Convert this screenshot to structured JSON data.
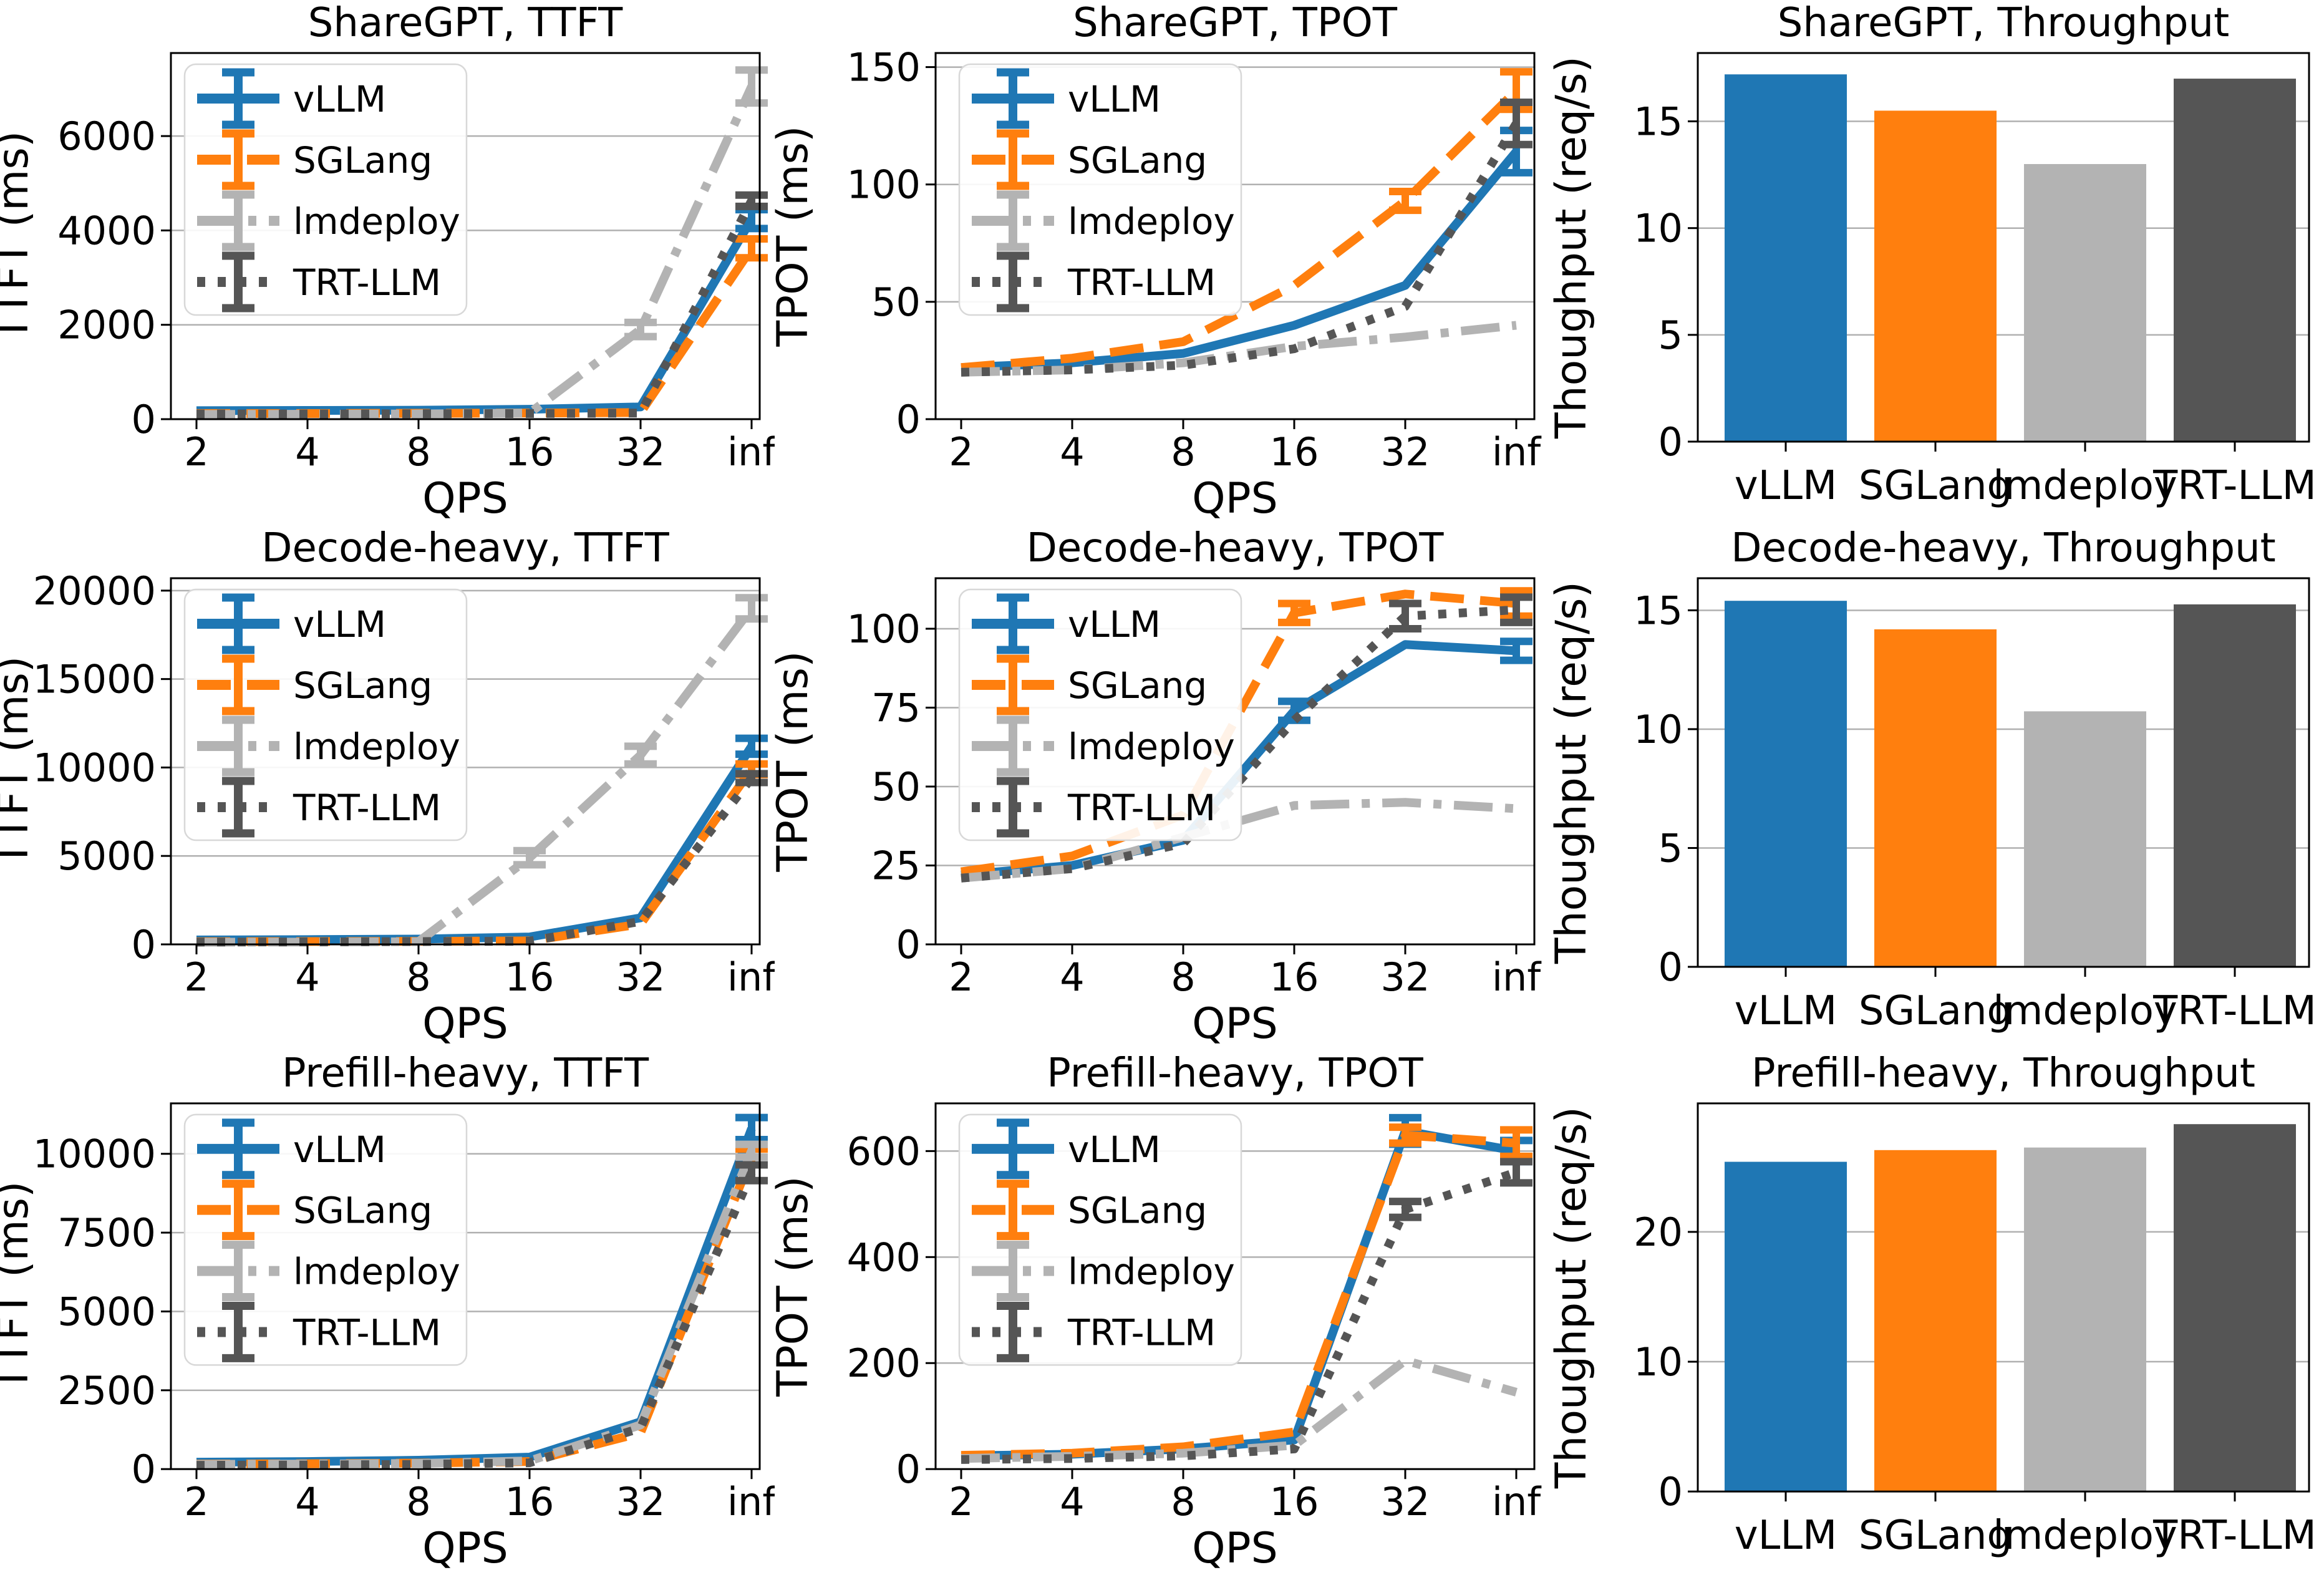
{
  "page": {
    "background": "#ffffff"
  },
  "palette": {
    "vLLM": "#1f77b4",
    "SGLang": "#ff7f0e",
    "lmdeploy": "#b3b3b3",
    "TRT-LLM": "#555555"
  },
  "style": {
    "grid_color": "#b0b0b0",
    "axis_color": "#000000",
    "legend_border": "#d8d8d8",
    "background": "#ffffff"
  },
  "series_order": [
    "vLLM",
    "SGLang",
    "lmdeploy",
    "TRT-LLM"
  ],
  "line_styles": {
    "vLLM": "solid",
    "SGLang": "dashed",
    "lmdeploy": "dashdot",
    "TRT-LLM": "dotted"
  },
  "x_axis_label": "QPS",
  "x_ticks": [
    "2",
    "4",
    "8",
    "16",
    "32",
    "inf"
  ],
  "chart_data": [
    {
      "id": "sharegpt-ttft",
      "type": "line",
      "title": "ShareGPT, TTFT",
      "xlabel": "QPS",
      "ylabel": "TTFT (ms)",
      "x_ticklabels": [
        "2",
        "4",
        "8",
        "16",
        "32",
        "inf"
      ],
      "yticks": [
        0,
        2000,
        4000,
        6000
      ],
      "ymax": 7760,
      "legend": true,
      "grid": true,
      "series": [
        {
          "name": "vLLM",
          "values": [
            180,
            185,
            190,
            210,
            260,
            4240
          ],
          "err": [
            0,
            0,
            0,
            0,
            0,
            200
          ]
        },
        {
          "name": "SGLang",
          "values": [
            120,
            120,
            125,
            130,
            140,
            3620
          ],
          "err": [
            0,
            0,
            0,
            0,
            0,
            200
          ]
        },
        {
          "name": "lmdeploy",
          "values": [
            100,
            105,
            110,
            130,
            1900,
            7050
          ],
          "err": [
            0,
            0,
            0,
            0,
            150,
            350
          ]
        },
        {
          "name": "TRT-LLM",
          "values": [
            110,
            110,
            115,
            120,
            130,
            4630
          ],
          "err": [
            0,
            0,
            0,
            0,
            0,
            120
          ]
        }
      ]
    },
    {
      "id": "sharegpt-tpot",
      "type": "line",
      "title": "ShareGPT, TPOT",
      "xlabel": "QPS",
      "ylabel": "TPOT (ms)",
      "x_ticklabels": [
        "2",
        "4",
        "8",
        "16",
        "32",
        "inf"
      ],
      "yticks": [
        0,
        50,
        100,
        150
      ],
      "ymax": 156,
      "legend": true,
      "grid": true,
      "series": [
        {
          "name": "vLLM",
          "values": [
            22,
            24,
            28,
            40,
            57,
            114
          ],
          "err": [
            0,
            0,
            0,
            0,
            0,
            9
          ]
        },
        {
          "name": "SGLang",
          "values": [
            22,
            26,
            33,
            57,
            93,
            140
          ],
          "err": [
            0,
            0,
            0,
            0,
            4,
            8
          ]
        },
        {
          "name": "lmdeploy",
          "values": [
            20,
            21,
            24,
            31,
            35,
            40
          ],
          "err": [
            0,
            0,
            0,
            0,
            0,
            0
          ]
        },
        {
          "name": "TRT-LLM",
          "values": [
            20,
            21,
            23,
            30,
            48,
            126
          ],
          "err": [
            0,
            0,
            0,
            0,
            0,
            9
          ]
        }
      ]
    },
    {
      "id": "sharegpt-throughput",
      "type": "bar",
      "title": "ShareGPT, Throughput",
      "ylabel": "Thoughput (req/s)",
      "categories": [
        "vLLM",
        "SGLang",
        "lmdeploy",
        "TRT-LLM"
      ],
      "values": [
        17.2,
        15.5,
        13.0,
        17.0
      ],
      "yticks": [
        0,
        5,
        10,
        15
      ],
      "ymax": 18.2,
      "grid": true
    },
    {
      "id": "decode-heavy-ttft",
      "type": "line",
      "title": "Decode-heavy, TTFT",
      "xlabel": "QPS",
      "ylabel": "TTFT (ms)",
      "x_ticklabels": [
        "2",
        "4",
        "8",
        "16",
        "32",
        "inf"
      ],
      "yticks": [
        0,
        5000,
        10000,
        15000,
        20000
      ],
      "ymax": 20700,
      "legend": true,
      "grid": true,
      "series": [
        {
          "name": "vLLM",
          "values": [
            250,
            270,
            300,
            420,
            1500,
            11200
          ],
          "err": [
            0,
            0,
            0,
            0,
            0,
            450
          ]
        },
        {
          "name": "SGLang",
          "values": [
            150,
            160,
            170,
            200,
            1150,
            9900
          ],
          "err": [
            0,
            0,
            0,
            0,
            0,
            300
          ]
        },
        {
          "name": "lmdeploy",
          "values": [
            120,
            130,
            150,
            4900,
            10700,
            19000
          ],
          "err": [
            0,
            0,
            0,
            400,
            500,
            600
          ]
        },
        {
          "name": "TRT-LLM",
          "values": [
            130,
            140,
            160,
            180,
            1300,
            9400
          ],
          "err": [
            0,
            0,
            0,
            0,
            0,
            250
          ]
        }
      ]
    },
    {
      "id": "decode-heavy-tpot",
      "type": "line",
      "title": "Decode-heavy, TPOT",
      "xlabel": "QPS",
      "ylabel": "TPOT (ms)",
      "x_ticklabels": [
        "2",
        "4",
        "8",
        "16",
        "32",
        "inf"
      ],
      "yticks": [
        0,
        25,
        50,
        75,
        100
      ],
      "ymax": 116,
      "legend": true,
      "grid": true,
      "series": [
        {
          "name": "vLLM",
          "values": [
            22,
            25,
            33,
            74,
            95,
            93
          ],
          "err": [
            0,
            0,
            0,
            3,
            0,
            3
          ]
        },
        {
          "name": "SGLang",
          "values": [
            23,
            28,
            41,
            105,
            111,
            108
          ],
          "err": [
            0,
            0,
            0,
            3,
            0,
            4
          ]
        },
        {
          "name": "lmdeploy",
          "values": [
            21,
            24,
            34,
            44,
            45,
            43
          ],
          "err": [
            0,
            0,
            0,
            0,
            0,
            0
          ]
        },
        {
          "name": "TRT-LLM",
          "values": [
            21,
            24,
            32,
            71,
            104,
            106
          ],
          "err": [
            0,
            0,
            0,
            0,
            4,
            4
          ]
        }
      ]
    },
    {
      "id": "decode-heavy-throughput",
      "type": "bar",
      "title": "Decode-heavy, Throughput",
      "ylabel": "Thoughput (req/s)",
      "categories": [
        "vLLM",
        "SGLang",
        "lmdeploy",
        "TRT-LLM"
      ],
      "values": [
        15.4,
        14.2,
        10.75,
        15.25
      ],
      "yticks": [
        0,
        5,
        10,
        15
      ],
      "ymax": 16.35,
      "grid": true
    },
    {
      "id": "prefill-heavy-ttft",
      "type": "line",
      "title": "Prefill-heavy, TTFT",
      "xlabel": "QPS",
      "ylabel": "TTFT (ms)",
      "x_ticklabels": [
        "2",
        "4",
        "8",
        "16",
        "32",
        "inf"
      ],
      "yticks": [
        0,
        2500,
        5000,
        7500,
        10000
      ],
      "ymax": 11600,
      "legend": true,
      "grid": true,
      "series": [
        {
          "name": "vLLM",
          "values": [
            220,
            240,
            280,
            380,
            1500,
            10800
          ],
          "err": [
            0,
            0,
            0,
            0,
            0,
            350
          ]
        },
        {
          "name": "SGLang",
          "values": [
            160,
            170,
            190,
            240,
            1150,
            9900
          ],
          "err": [
            0,
            0,
            0,
            0,
            0,
            250
          ]
        },
        {
          "name": "lmdeploy",
          "values": [
            150,
            160,
            180,
            260,
            1400,
            10100
          ],
          "err": [
            0,
            0,
            0,
            0,
            0,
            200
          ]
        },
        {
          "name": "TRT-LLM",
          "values": [
            120,
            130,
            150,
            200,
            1300,
            9400
          ],
          "err": [
            0,
            0,
            0,
            0,
            0,
            250
          ]
        }
      ]
    },
    {
      "id": "prefill-heavy-tpot",
      "type": "line",
      "title": "Prefill-heavy, TPOT",
      "xlabel": "QPS",
      "ylabel": "TPOT (ms)",
      "x_ticklabels": [
        "2",
        "4",
        "8",
        "16",
        "32",
        "inf"
      ],
      "yticks": [
        0,
        200,
        400,
        600
      ],
      "ymax": 690,
      "legend": true,
      "grid": true,
      "series": [
        {
          "name": "vLLM",
          "values": [
            25,
            28,
            38,
            55,
            638,
            600
          ],
          "err": [
            0,
            0,
            0,
            0,
            25,
            20
          ]
        },
        {
          "name": "SGLang",
          "values": [
            26,
            30,
            42,
            70,
            630,
            615
          ],
          "err": [
            0,
            0,
            0,
            0,
            15,
            25
          ]
        },
        {
          "name": "lmdeploy",
          "values": [
            20,
            24,
            30,
            45,
            205,
            145
          ],
          "err": [
            0,
            0,
            0,
            0,
            0,
            0
          ]
        },
        {
          "name": "TRT-LLM",
          "values": [
            18,
            20,
            25,
            38,
            490,
            560
          ],
          "err": [
            0,
            0,
            0,
            0,
            15,
            20
          ]
        }
      ]
    },
    {
      "id": "prefill-heavy-throughput",
      "type": "bar",
      "title": "Prefill-heavy, Throughput",
      "ylabel": "Thoughput (req/s)",
      "categories": [
        "vLLM",
        "SGLang",
        "lmdeploy",
        "TRT-LLM"
      ],
      "values": [
        25.4,
        26.3,
        26.5,
        28.3
      ],
      "yticks": [
        0,
        10,
        20
      ],
      "ymax": 29.9,
      "grid": true
    }
  ]
}
